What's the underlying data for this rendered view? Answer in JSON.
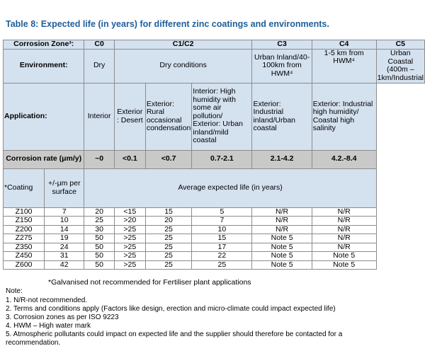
{
  "title": "Table 8: Expected life (in years) for different zinc coatings and environments.",
  "header": {
    "zone_label": "Corrosion Zone³:",
    "zones": [
      "C0",
      "C1/C2",
      "C3",
      "C4",
      "C5"
    ],
    "env_label": "Environment:",
    "environments": [
      "Dry",
      "Dry conditions",
      "Urban Inland/40-100km from HWM⁴",
      "1-5 km from HWM⁴",
      "Urban Coastal (400m – 1km/Industrial"
    ],
    "app_label": "Application:",
    "applications": [
      "Interior",
      "Exterior : Desert",
      "Exterior: Rural occasional condensation",
      "Interior: High humidity with some air pollution/ Exterior: Urban inland/mild coastal",
      "Exterior: Industrial inland/Urban coastal",
      "Exterior: Industrial high humidity/ Coastal high salinity"
    ],
    "rate_label": "Corrosion rate (μm/y)",
    "rates": [
      "~0",
      "<0.1",
      "<0.7",
      "0.7-2.1",
      "2.1-4.2",
      "4.2.-8.4"
    ],
    "coating_label": "*Coating",
    "tolerance_label": "+/-μm per surface",
    "avg_life_label": "Average expected life (in years)"
  },
  "rows": [
    {
      "coating": "Z100",
      "tol": "7",
      "c0": "20",
      "desert": "<15",
      "rural": "15",
      "c3": "5",
      "c4": "N/R",
      "c5": "N/R"
    },
    {
      "coating": "Z150",
      "tol": "10",
      "c0": "25",
      "desert": ">20",
      "rural": "20",
      "c3": "7",
      "c4": "N/R",
      "c5": "N/R"
    },
    {
      "coating": "Z200",
      "tol": "14",
      "c0": "30",
      "desert": ">25",
      "rural": "25",
      "c3": "10",
      "c4": "N/R",
      "c5": "N/R"
    },
    {
      "coating": "Z275",
      "tol": "19",
      "c0": "50",
      "desert": ">25",
      "rural": "25",
      "c3": "15",
      "c4": "Note 5",
      "c5": "N/R"
    },
    {
      "coating": "Z350",
      "tol": "24",
      "c0": "50",
      "desert": ">25",
      "rural": "25",
      "c3": "17",
      "c4": "Note 5",
      "c5": "N/R"
    },
    {
      "coating": "Z450",
      "tol": "31",
      "c0": "50",
      "desert": ">25",
      "rural": "25",
      "c3": "22",
      "c4": "Note 5",
      "c5": "Note 5"
    },
    {
      "coating": "Z600",
      "tol": "42",
      "c0": "50",
      "desert": ">25",
      "rural": "25",
      "c3": "25",
      "c4": "Note 5",
      "c5": "Note 5"
    }
  ],
  "caption": "*Galvanised not recommended for Fertiliser plant applications",
  "notes": [
    "Note:",
    "1. N/R-not recommended.",
    "2. Terms and conditions apply (Factors like design, erection and micro-climate could impact expected life)",
    "3. Corrosion zones as per ISO 9223",
    "4. HWM – High water mark",
    "5. Atmospheric pollutants could impact on expected life and the supplier should therefore be contacted for a",
    "recommendation."
  ]
}
